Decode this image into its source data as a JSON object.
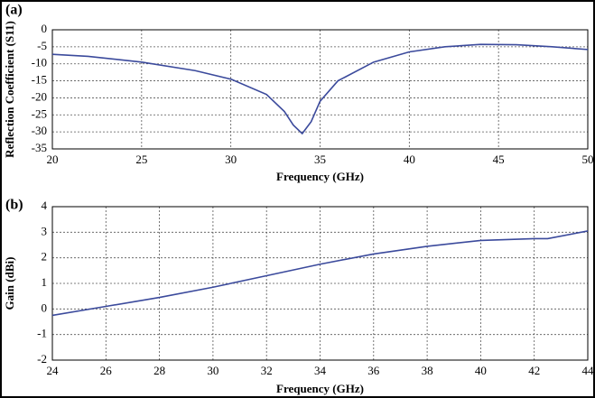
{
  "chart_data": [
    {
      "type": "line",
      "title": "(a)",
      "xlabel": "Frequency (GHz)",
      "ylabel": "Reflection Coefficient (S11)",
      "x": [
        20,
        22,
        25,
        28,
        30,
        32,
        33,
        33.5,
        34,
        34.5,
        35,
        36,
        38,
        40,
        42,
        44,
        46,
        48,
        50
      ],
      "series": [
        {
          "name": "S11",
          "color": "#3b4a9c",
          "values": [
            -7.2,
            -7.8,
            -9.5,
            -12,
            -14.5,
            -19,
            -24,
            -28,
            -30.5,
            -27,
            -21,
            -15,
            -9.5,
            -6.5,
            -5,
            -4.3,
            -4.4,
            -5,
            -5.8
          ]
        }
      ],
      "xlim": [
        20,
        50
      ],
      "xticks": [
        20,
        25,
        30,
        35,
        40,
        45,
        50
      ],
      "ylim": [
        -35,
        0
      ],
      "yticks": [
        -35,
        -30,
        -25,
        -20,
        -15,
        -10,
        -5,
        0
      ],
      "grid": true
    },
    {
      "type": "line",
      "title": "(b)",
      "xlabel": "Frequency (GHz)",
      "ylabel": "Gain (dBi)",
      "x": [
        24,
        26,
        28,
        30,
        32,
        34,
        36,
        38,
        40,
        42,
        42.5,
        44
      ],
      "series": [
        {
          "name": "Gain",
          "color": "#3b4a9c",
          "values": [
            -0.25,
            0.1,
            0.45,
            0.85,
            1.3,
            1.75,
            2.15,
            2.45,
            2.68,
            2.75,
            2.75,
            3.05
          ]
        }
      ],
      "xlim": [
        24,
        44
      ],
      "xticks": [
        24,
        26,
        28,
        30,
        32,
        34,
        36,
        38,
        40,
        42,
        44
      ],
      "ylim": [
        -2,
        4
      ],
      "yticks": [
        -2,
        -1,
        0,
        1,
        2,
        3,
        4
      ],
      "grid": true
    }
  ]
}
